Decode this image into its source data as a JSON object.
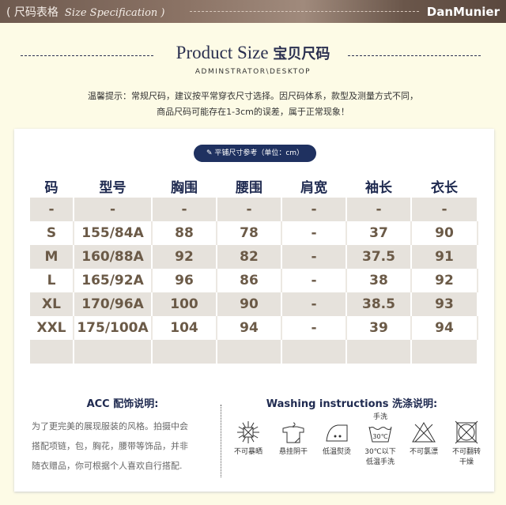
{
  "banner": {
    "title": "( 尺码表格",
    "subtitle": "Size Specification )",
    "logo": "DanMunier"
  },
  "heading": {
    "en": "Product Size",
    "cn": "宝贝尺码",
    "sub": "ADMINSTRATOR\\DESKTOP"
  },
  "tips": [
    "温馨提示：常规尺码，建议按平常穿衣尺寸选择。因尺码体系，款型及测量方式不同，",
    "商品尺码可能存在1-3cm的误差，属于正常现象！"
  ],
  "pill": "平铺尺寸参考（单位：cm）",
  "table": {
    "headers": [
      "码",
      "型号",
      "胸围",
      "腰围",
      "肩宽",
      "袖长",
      "衣长"
    ],
    "rows": [
      [
        "-",
        "-",
        "-",
        "-",
        "-",
        "-",
        "-"
      ],
      [
        "S",
        "155/84A",
        "88",
        "78",
        "-",
        "37",
        "90"
      ],
      [
        "M",
        "160/88A",
        "92",
        "82",
        "-",
        "37.5",
        "91"
      ],
      [
        "L",
        "165/92A",
        "96",
        "86",
        "-",
        "38",
        "92"
      ],
      [
        "XL",
        "170/96A",
        "100",
        "90",
        "-",
        "38.5",
        "93"
      ],
      [
        "XXL",
        "175/100A",
        "104",
        "94",
        "-",
        "39",
        "94"
      ],
      [
        "",
        "",
        "",
        "",
        "",
        "",
        ""
      ]
    ]
  },
  "acc": {
    "title": "ACC 配饰说明:",
    "lines": [
      "为了更完美的展现服装的风格。拍摄中会",
      "搭配项链，包，胸花，腰带等饰品，并非",
      "随衣赠品，你可根据个人喜欢自行搭配."
    ]
  },
  "wash": {
    "title": "Washing instructions  洗涤说明:",
    "items": [
      {
        "icon": "no-sun-icon",
        "label": "不可暴晒"
      },
      {
        "icon": "hang-dry-icon",
        "label": "悬挂阴干"
      },
      {
        "icon": "low-iron-icon",
        "label": "低温熨烫"
      },
      {
        "icon": "hand-wash-icon",
        "top": "手洗",
        "temp": "30℃",
        "label": "30℃以下\n低温手洗"
      },
      {
        "icon": "no-bleach-icon",
        "label": "不可氯漂"
      },
      {
        "icon": "no-tumble-dry-icon",
        "label": "不可翻转\n干燥"
      }
    ]
  }
}
